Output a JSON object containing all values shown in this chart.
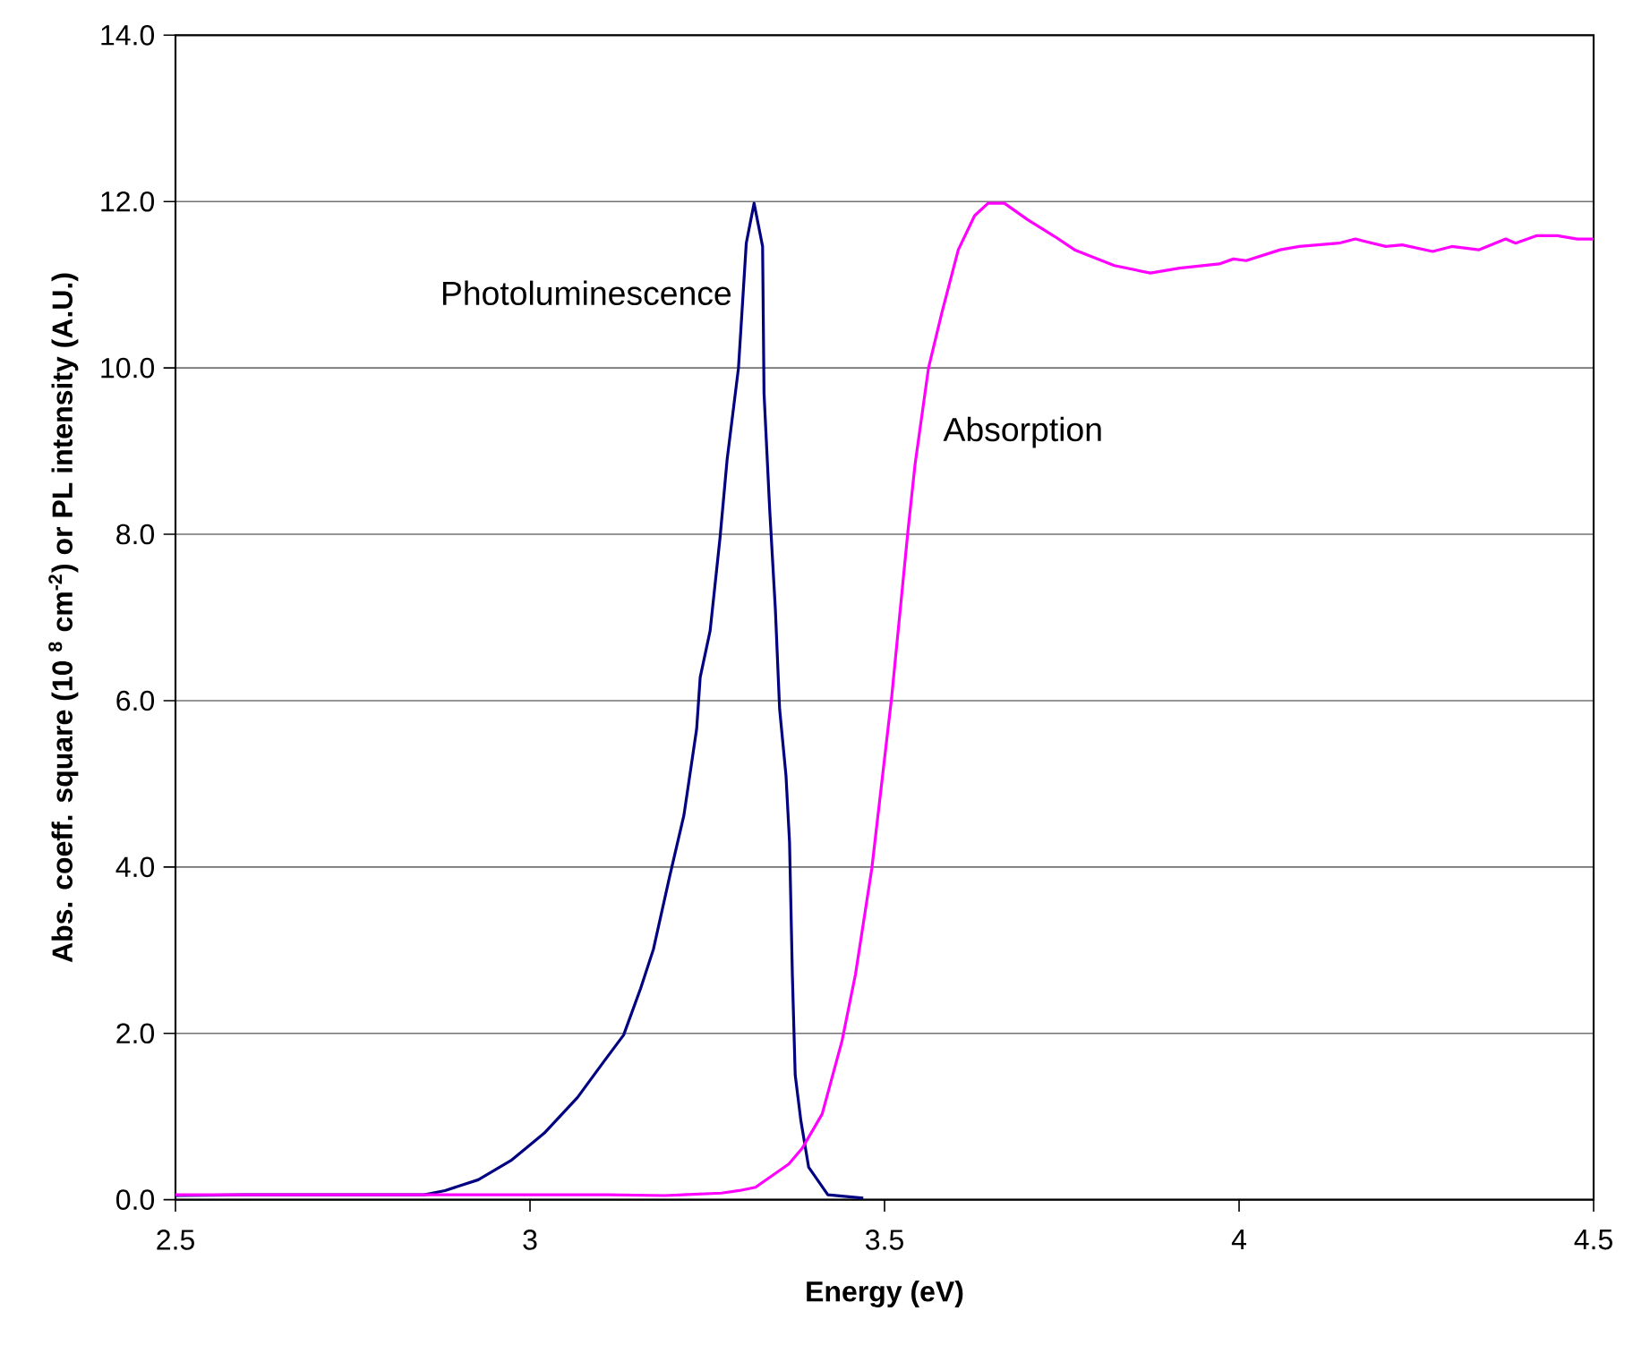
{
  "chart_data": {
    "type": "line",
    "xlabel": "Energy (eV)",
    "ylabel": "Abs. coeff. square (10 $^{8}$ cm$^{-2}$) or PL intensity (A.U.)",
    "xlim": [
      2.5,
      4.5
    ],
    "xticks": [
      2.5,
      3,
      3.5,
      4,
      4.5
    ],
    "ylim": [
      0,
      14
    ],
    "yticks": [
      {
        "value": 0,
        "label": "0.0"
      },
      {
        "value": 2,
        "label": "2.0"
      },
      {
        "value": 4,
        "label": "4.0"
      },
      {
        "value": 6,
        "label": "6.0"
      },
      {
        "value": 8,
        "label": "8.0"
      },
      {
        "value": 10,
        "label": "10.0"
      },
      {
        "value": 12,
        "label": "12.0"
      },
      {
        "value": 14,
        "label": "14.0"
      }
    ],
    "grid": "y",
    "legend": false,
    "marker": "none",
    "line_style": "solid",
    "series": [
      {
        "name": "Photoluminescence",
        "color": "#000080",
        "x": [
          2.5,
          2.6,
          2.7,
          2.8,
          2.851,
          2.88,
          2.927,
          2.973,
          3.02,
          3.067,
          3.104,
          3.132,
          3.156,
          3.174,
          3.197,
          3.217,
          3.235,
          3.24,
          3.254,
          3.268,
          3.278,
          3.294,
          3.305,
          3.316,
          3.328,
          3.33,
          3.338,
          3.346,
          3.352,
          3.361,
          3.366,
          3.37,
          3.374,
          3.382,
          3.393,
          3.42,
          3.47
        ],
        "values": [
          0.05,
          0.06,
          0.06,
          0.06,
          0.06,
          0.11,
          0.24,
          0.47,
          0.8,
          1.23,
          1.66,
          1.98,
          2.54,
          3.01,
          3.89,
          4.62,
          5.66,
          6.28,
          6.84,
          7.96,
          8.9,
          10.0,
          11.5,
          11.98,
          11.46,
          9.7,
          8.3,
          7.1,
          5.9,
          5.1,
          4.3,
          2.7,
          1.5,
          0.95,
          0.39,
          0.06,
          0.02
        ]
      },
      {
        "name": "Absorption",
        "color": "#ff00ff",
        "x": [
          2.5,
          2.8,
          3.11,
          3.19,
          3.27,
          3.295,
          3.318,
          3.365,
          3.384,
          3.412,
          3.44,
          3.459,
          3.482,
          3.51,
          3.533,
          3.543,
          3.562,
          3.581,
          3.604,
          3.627,
          3.646,
          3.669,
          3.702,
          3.74,
          3.768,
          3.824,
          3.875,
          3.916,
          3.972,
          3.992,
          4.01,
          4.058,
          4.085,
          4.141,
          4.164,
          4.207,
          4.23,
          4.273,
          4.3,
          4.338,
          4.376,
          4.39,
          4.42,
          4.449,
          4.477,
          4.5
        ],
        "values": [
          0.06,
          0.06,
          0.06,
          0.05,
          0.08,
          0.11,
          0.15,
          0.43,
          0.62,
          1.03,
          1.91,
          2.71,
          3.98,
          6.04,
          8.04,
          8.84,
          10.0,
          10.67,
          11.42,
          11.83,
          11.98,
          11.98,
          11.78,
          11.58,
          11.42,
          11.23,
          11.14,
          11.2,
          11.25,
          11.31,
          11.29,
          11.42,
          11.46,
          11.5,
          11.55,
          11.46,
          11.48,
          11.4,
          11.46,
          11.42,
          11.55,
          11.5,
          11.59,
          11.59,
          11.55,
          11.55
        ]
      }
    ]
  }
}
